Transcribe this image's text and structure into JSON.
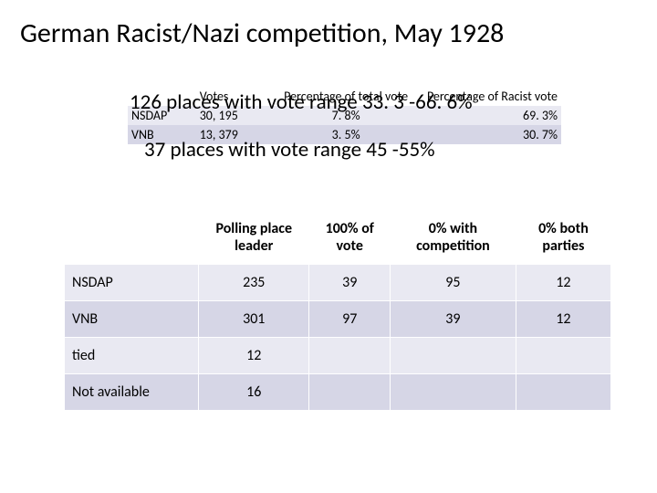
{
  "title": "German Racist/Nazi competition, May 1928",
  "overlay": {
    "line1": "126 places with vote range 33. 3 -66. 6%",
    "line2": "37 places with vote range 45 -55%"
  },
  "smallTable": {
    "headers": {
      "votes": "Votes",
      "pctTotal": "Percentage of total vote",
      "pctRacist": "Percentage of Racist vote"
    },
    "rows": [
      {
        "party": "NSDAP",
        "votes": "30, 195",
        "pctTotal": "7. 8%",
        "pctRacist": "69. 3%"
      },
      {
        "party": "VNB",
        "votes": "13, 379",
        "pctTotal": "3. 5%",
        "pctRacist": "30. 7%"
      }
    ]
  },
  "mainTable": {
    "headers": {
      "leader": "Polling place leader",
      "pct100": "100% of vote",
      "zeroComp": "0% with competition",
      "zeroBoth": "0% both parties"
    },
    "rows": [
      {
        "label": "NSDAP",
        "leader": "235",
        "pct100": "39",
        "zeroComp": "95",
        "zeroBoth": "12"
      },
      {
        "label": "VNB",
        "leader": "301",
        "pct100": "97",
        "zeroComp": "39",
        "zeroBoth": "12"
      },
      {
        "label": "tied",
        "leader": "12",
        "pct100": "",
        "zeroComp": "",
        "zeroBoth": ""
      },
      {
        "label": "Not available",
        "leader": "16",
        "pct100": "",
        "zeroComp": "",
        "zeroBoth": ""
      }
    ]
  },
  "style": {
    "background": "#ffffff",
    "titleFontSize": 30,
    "bodyFontSize": 16,
    "smallFontSize": 14,
    "rowOdd": "#e9e9f2",
    "rowEven": "#d6d6e6",
    "textColor": "#000000"
  }
}
